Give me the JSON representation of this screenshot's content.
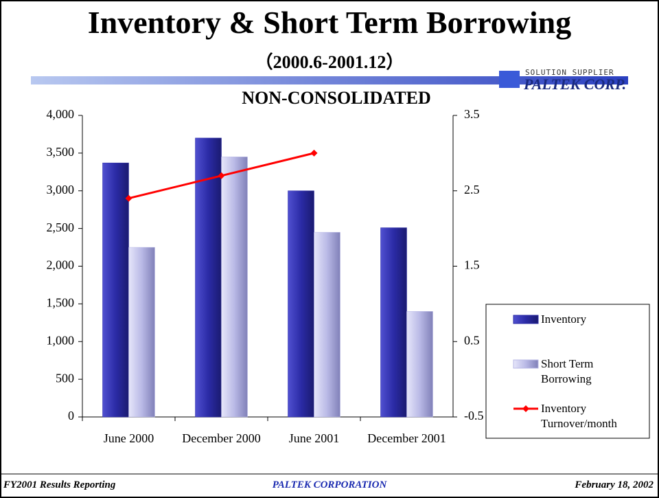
{
  "slide": {
    "title": "Inventory & Short Term Borrowing",
    "subtitle": "（2000.6-2001.12）",
    "logo": {
      "tagline": "SOLUTION SUPPLIER",
      "name": "PALTEK CORP."
    },
    "footer": {
      "left": "FY2001 Results Reporting",
      "center": "PALTEK CORPORATION",
      "right": "February 18, 2002"
    }
  },
  "chart_data": {
    "type": "bar",
    "title": "NON-CONSOLIDATED",
    "categories": [
      "June 2000",
      "December 2000",
      "June 2001",
      "December 2001"
    ],
    "series": [
      {
        "name": "Inventory",
        "color": "#2b2ba6",
        "values": [
          3370,
          3700,
          3000,
          2510
        ]
      },
      {
        "name": "Short Term Borrowing",
        "color": "#b9b9e6",
        "values": [
          2250,
          3450,
          2450,
          1400
        ]
      },
      {
        "name": "Inventory Turnover/month",
        "color": "#ff0000",
        "type": "line",
        "axis": "y2",
        "values": [
          2.4,
          2.7,
          3.0,
          null
        ]
      }
    ],
    "ylim": [
      0,
      4000
    ],
    "yticks": [
      0,
      500,
      {
        "value": 1000,
        "label": "1,000"
      },
      {
        "value": 1500,
        "label": "1,500"
      },
      {
        "value": 2000,
        "label": "2,000"
      },
      {
        "value": 2500,
        "label": "2,500"
      },
      {
        "value": 3000,
        "label": "3,000"
      },
      {
        "value": 3500,
        "label": "3,500"
      },
      {
        "value": 4000,
        "label": "4,000"
      }
    ],
    "y2lim": [
      -0.5,
      3.5
    ],
    "y2ticks": [
      -0.5,
      0.5,
      1.5,
      2.5,
      3.5
    ],
    "legend": "right"
  }
}
